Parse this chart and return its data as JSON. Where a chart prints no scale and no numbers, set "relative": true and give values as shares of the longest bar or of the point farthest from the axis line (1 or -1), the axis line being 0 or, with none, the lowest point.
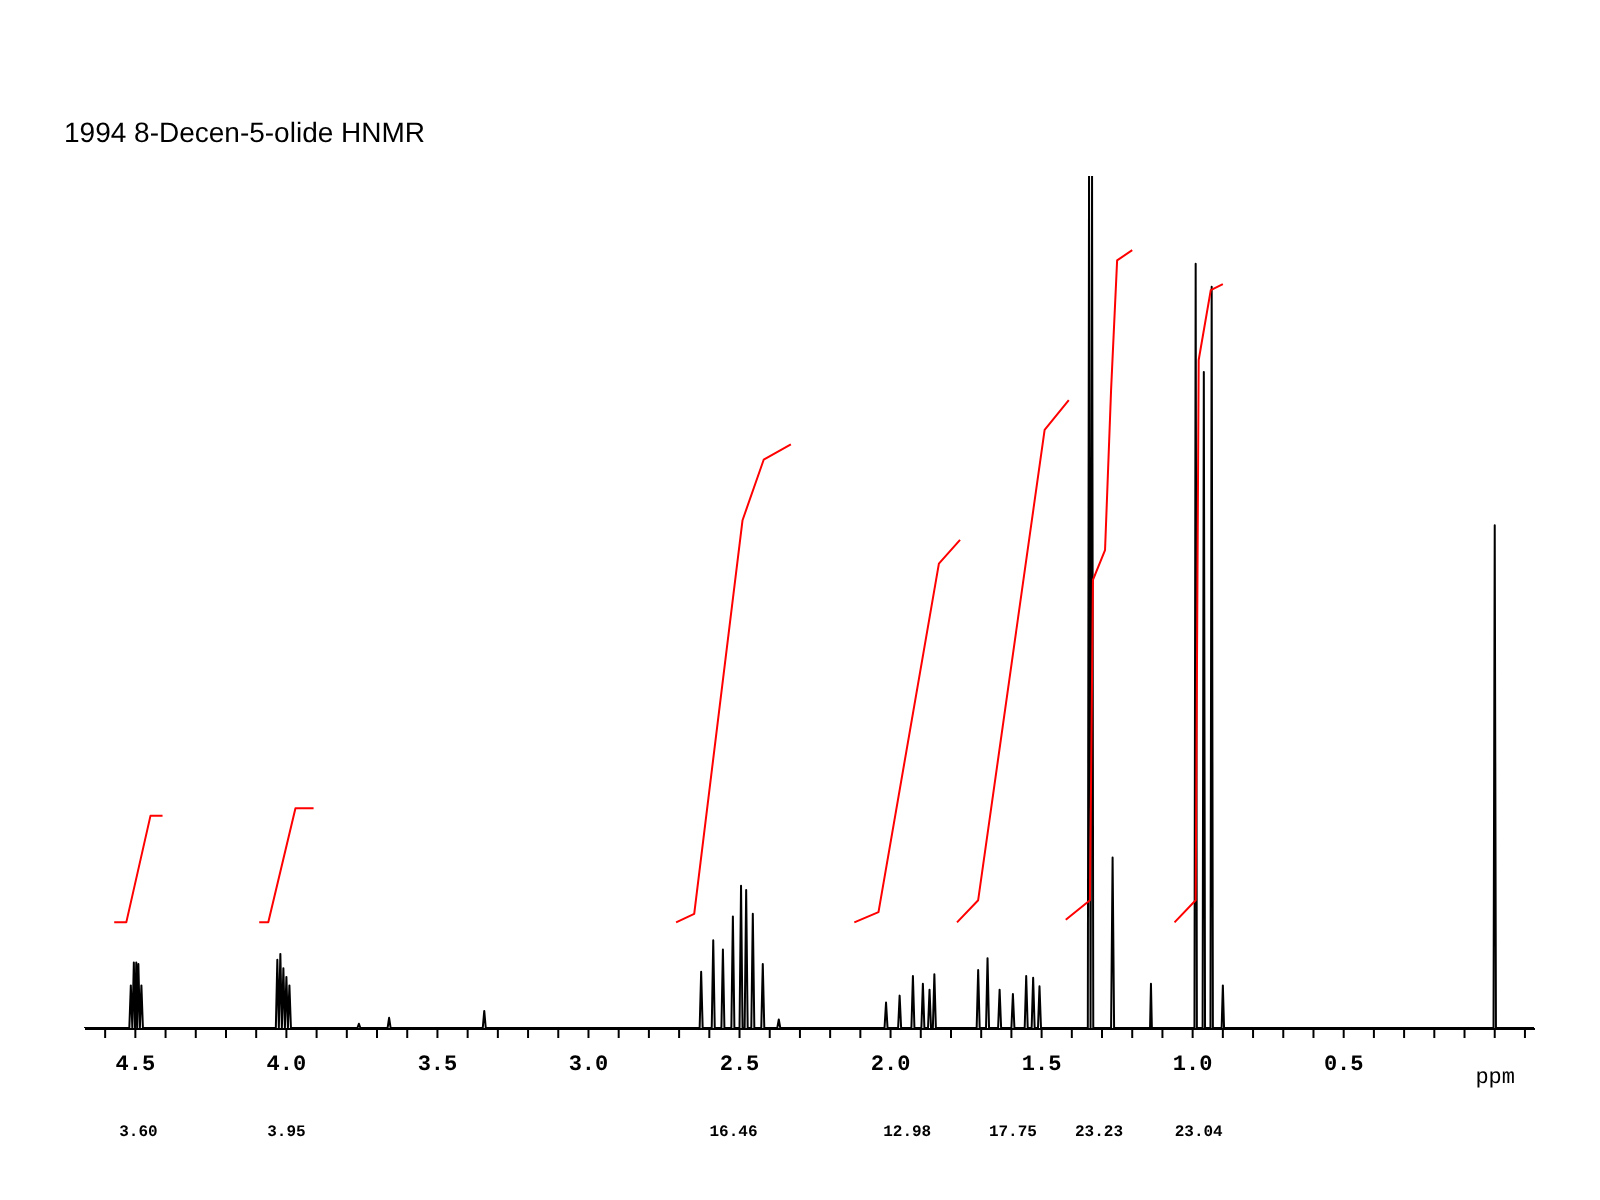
{
  "chart_data": {
    "type": "line",
    "title": "1994    8-Decen-5-olide HNMR",
    "xlabel": "ppm",
    "relative": true,
    "xlim": [
      4.67,
      -0.13
    ],
    "xticks": [
      {
        "value": 4.6,
        "label": null
      },
      4.5,
      {
        "value": 4.4,
        "label": null
      },
      {
        "value": 4.3,
        "label": null
      },
      {
        "value": 4.2,
        "label": null
      },
      {
        "value": 4.1,
        "label": null
      },
      {
        "value": 4.0,
        "label": "4.0"
      },
      {
        "value": 3.9,
        "label": null
      },
      {
        "value": 3.8,
        "label": null
      },
      {
        "value": 3.7,
        "label": null
      },
      {
        "value": 3.6,
        "label": null
      },
      3.5,
      {
        "value": 3.4,
        "label": null
      },
      {
        "value": 3.3,
        "label": null
      },
      {
        "value": 3.2,
        "label": null
      },
      {
        "value": 3.1,
        "label": null
      },
      {
        "value": 3.0,
        "label": "3.0"
      },
      {
        "value": 2.9,
        "label": null
      },
      {
        "value": 2.8,
        "label": null
      },
      {
        "value": 2.7,
        "label": null
      },
      {
        "value": 2.6,
        "label": null
      },
      2.5,
      {
        "value": 2.4,
        "label": null
      },
      {
        "value": 2.3,
        "label": null
      },
      {
        "value": 2.2,
        "label": null
      },
      {
        "value": 2.1,
        "label": null
      },
      {
        "value": 2.0,
        "label": "2.0"
      },
      {
        "value": 1.9,
        "label": null
      },
      {
        "value": 1.8,
        "label": null
      },
      {
        "value": 1.7,
        "label": null
      },
      {
        "value": 1.6,
        "label": null
      },
      1.5,
      {
        "value": 1.4,
        "label": null
      },
      {
        "value": 1.3,
        "label": null
      },
      {
        "value": 1.2,
        "label": null
      },
      {
        "value": 1.1,
        "label": null
      },
      {
        "value": 1.0,
        "label": "1.0"
      },
      {
        "value": 0.9,
        "label": null
      },
      {
        "value": 0.8,
        "label": null
      },
      {
        "value": 0.7,
        "label": null
      },
      {
        "value": 0.6,
        "label": null
      },
      0.5,
      {
        "value": 0.4,
        "label": null
      },
      {
        "value": 0.3,
        "label": null
      },
      {
        "value": 0.2,
        "label": null
      },
      {
        "value": 0.1,
        "label": null
      },
      {
        "value": 0.0,
        "label": null
      },
      {
        "value": -0.1,
        "label": null
      }
    ],
    "tick_labels": "x",
    "marker": "none",
    "line_style": "solid",
    "annotations": [
      "3.60",
      "3.95",
      "16.46",
      "12.98",
      "17.75",
      "23.23",
      "23.04"
    ],
    "series": [
      {
        "color": "#000000",
        "x": [
          4.67,
          4.52,
          4.515,
          4.51,
          4.505,
          4.501,
          4.497,
          4.494,
          4.49,
          4.485,
          4.48,
          4.475,
          4.035,
          4.03,
          4.025,
          4.02,
          4.015,
          4.01,
          4.005,
          4.0,
          3.995,
          3.99,
          3.985,
          3.765,
          3.76,
          3.755,
          3.665,
          3.66,
          3.655,
          3.35,
          3.345,
          3.34,
          2.632,
          2.627,
          2.622,
          2.592,
          2.587,
          2.582,
          2.56,
          2.555,
          2.55,
          2.527,
          2.522,
          2.517,
          2.5,
          2.495,
          2.49,
          2.483,
          2.478,
          2.473,
          2.461,
          2.456,
          2.451,
          2.428,
          2.423,
          2.418,
          2.375,
          2.37,
          2.365,
          2.02,
          2.015,
          2.01,
          1.975,
          1.97,
          1.965,
          1.931,
          1.926,
          1.921,
          1.898,
          1.893,
          1.888,
          1.876,
          1.871,
          1.866,
          1.86,
          1.855,
          1.85,
          1.715,
          1.71,
          1.705,
          1.684,
          1.679,
          1.674,
          1.644,
          1.639,
          1.634,
          1.6,
          1.595,
          1.59,
          1.556,
          1.551,
          1.546,
          1.533,
          1.528,
          1.523,
          1.512,
          1.507,
          1.502,
          1.347,
          1.343,
          1.338,
          1.333,
          1.329,
          1.27,
          1.265,
          1.26,
          1.141,
          1.138,
          1.135,
          0.994,
          0.99,
          0.986,
          0.967,
          0.963,
          0.959,
          0.941,
          0.937,
          0.933,
          0.904,
          0.9,
          0.896,
          0.004,
          0.0,
          -0.004,
          -0.13
        ],
        "values": [
          0,
          0,
          0.05,
          0,
          0.077,
          0,
          0.077,
          0,
          0.075,
          0,
          0.05,
          0,
          0,
          0.08,
          0,
          0.087,
          0,
          0.07,
          0,
          0.06,
          0,
          0.05,
          0,
          0,
          0.005,
          0,
          0,
          0.012,
          0,
          0,
          0.02,
          0,
          0,
          0.066,
          0,
          0,
          0.103,
          0,
          0,
          0.092,
          0,
          0,
          0.131,
          0,
          0,
          0.167,
          0,
          0,
          0.162,
          0,
          0,
          0.134,
          0,
          0,
          0.075,
          0,
          0,
          0.01,
          0,
          0,
          0.03,
          0,
          0,
          0.038,
          0,
          0,
          0.061,
          0,
          0,
          0.052,
          0,
          0,
          0.045,
          0,
          0,
          0.063,
          0,
          0,
          0.068,
          0,
          0,
          0.082,
          0,
          0,
          0.045,
          0,
          0,
          0.04,
          0,
          0,
          0.061,
          0,
          0,
          0.059,
          0,
          0,
          0.049,
          0,
          0,
          1,
          0,
          1,
          0,
          0,
          0.2,
          0,
          0,
          0.052,
          0,
          0,
          0.897,
          0,
          0,
          0.77,
          0,
          0,
          0.87,
          0,
          0,
          0.05,
          0,
          0,
          0.59,
          0,
          0
        ]
      },
      {
        "color": "#ff0000",
        "x": [
          4.57,
          4.53,
          4.45,
          4.41,
          null,
          4.09,
          4.06,
          3.97,
          3.91,
          null,
          2.71,
          2.65,
          2.49,
          2.42,
          2.33,
          null,
          2.12,
          2.04,
          1.84,
          1.77,
          null,
          1.78,
          1.71,
          1.49,
          1.41,
          null,
          1.42,
          1.34,
          1.33,
          1.29,
          1.27,
          1.25,
          1.2,
          null,
          1.06,
          0.99,
          0.98,
          0.94,
          0.9
        ],
        "values": [
          0.124,
          0.124,
          0.249,
          0.249,
          null,
          0.124,
          0.124,
          0.258,
          0.258,
          null,
          0.124,
          0.134,
          0.596,
          0.667,
          0.685,
          null,
          0.124,
          0.136,
          0.545,
          0.573,
          null,
          0.124,
          0.15,
          0.702,
          0.737,
          null,
          0.127,
          0.15,
          0.526,
          0.561,
          0.749,
          0.901,
          0.913,
          null,
          0.124,
          0.15,
          0.784,
          0.866,
          0.873
        ]
      }
    ]
  }
}
